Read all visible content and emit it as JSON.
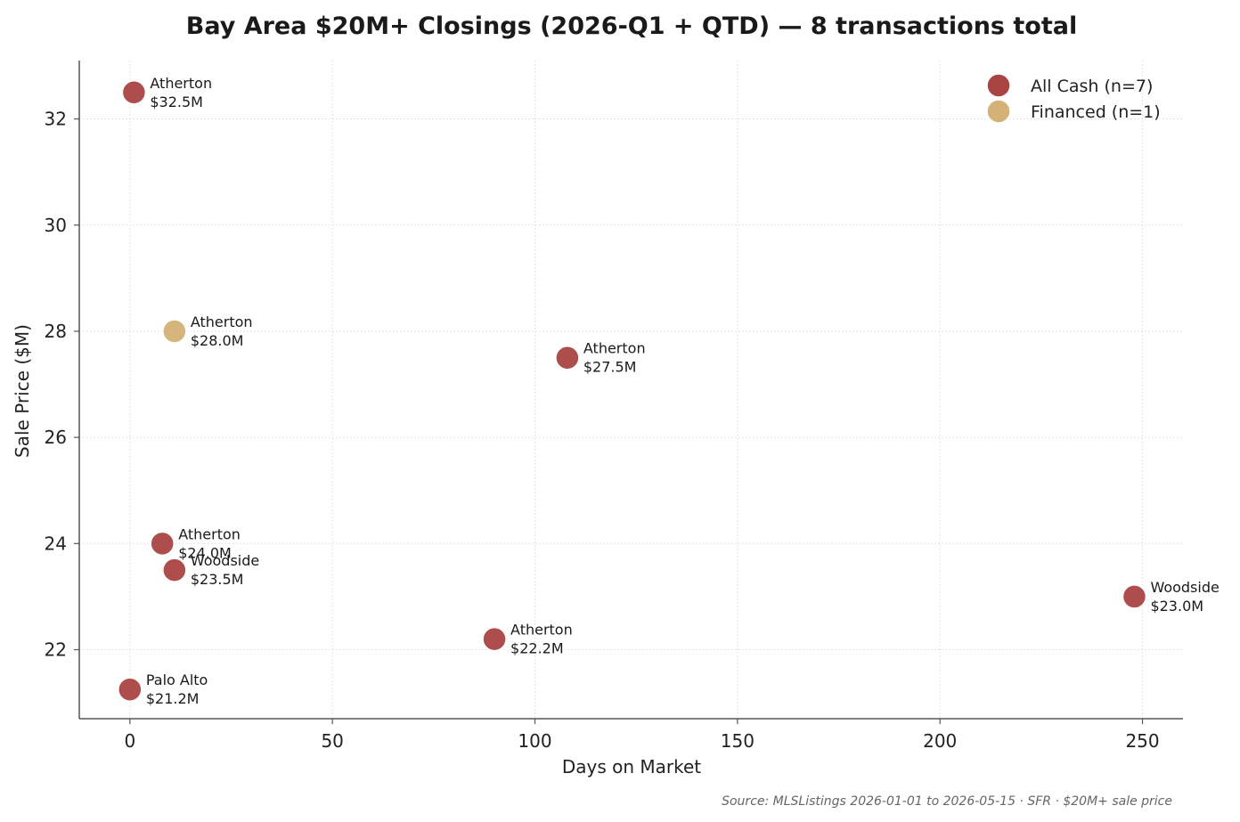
{
  "chart_data": {
    "type": "scatter",
    "title": "Bay Area $20M+ Closings (2026-Q1 + QTD) — 8 transactions total",
    "xlabel": "Days on Market",
    "ylabel": "Sale Price ($M)",
    "xlim": [
      -12.5,
      260
    ],
    "ylim": [
      20.7,
      33.1
    ],
    "xticks": [
      0,
      50,
      100,
      150,
      200,
      250
    ],
    "yticks": [
      22,
      24,
      26,
      28,
      30,
      32
    ],
    "grid": true,
    "legend_position": "top-right",
    "colors": {
      "cash": "#a94442",
      "financed": "#d4b176",
      "grid": "#dddddd",
      "axis": "#555555"
    },
    "series": [
      {
        "name": "All Cash (n=7)",
        "key": "cash",
        "points": [
          {
            "x": 1,
            "y": 32.5,
            "city": "Atherton",
            "price": "$32.5M"
          },
          {
            "x": 108,
            "y": 27.5,
            "city": "Atherton",
            "price": "$27.5M"
          },
          {
            "x": 8,
            "y": 24.0,
            "city": "Atherton",
            "price": "$24.0M"
          },
          {
            "x": 11,
            "y": 23.5,
            "city": "Woodside",
            "price": "$23.5M"
          },
          {
            "x": 248,
            "y": 23.0,
            "city": "Woodside",
            "price": "$23.0M"
          },
          {
            "x": 90,
            "y": 22.2,
            "city": "Atherton",
            "price": "$22.2M"
          },
          {
            "x": 0,
            "y": 21.25,
            "city": "Palo Alto",
            "price": "$21.2M"
          }
        ]
      },
      {
        "name": "Financed (n=1)",
        "key": "financed",
        "points": [
          {
            "x": 11,
            "y": 28.0,
            "city": "Atherton",
            "price": "$28.0M"
          }
        ]
      }
    ],
    "source": "Source: MLSListings 2026-01-01 to 2026-05-15 · SFR · $20M+ sale price"
  }
}
